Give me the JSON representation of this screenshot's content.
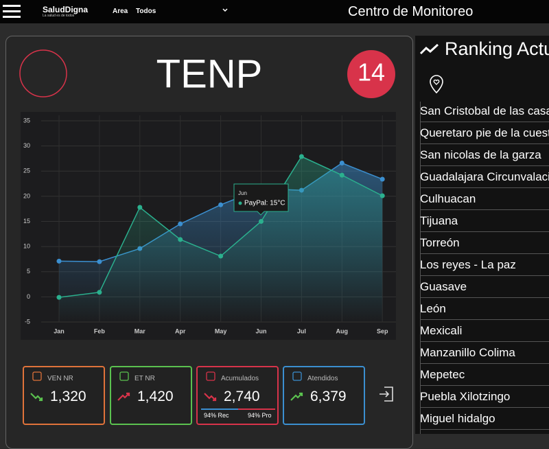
{
  "header": {
    "logo": "SaludDigna",
    "logo_sub": "La salud es de todos",
    "area_label": "Area",
    "area_value": "Todos",
    "title": "Centro de Monitoreo"
  },
  "panel": {
    "title": "TENP",
    "badge": "14"
  },
  "chart_data": {
    "type": "line",
    "categories": [
      "Jan",
      "Feb",
      "Mar",
      "Apr",
      "May",
      "Jun",
      "Jul",
      "Aug",
      "Sep"
    ],
    "series": [
      {
        "color": "#3b8fd0",
        "values": [
          7.1,
          7,
          9.6,
          14.5,
          18.3,
          21.5,
          21.2,
          26.6,
          23.4
        ]
      },
      {
        "name": "PayPal",
        "color": "#2bb08e",
        "values": [
          -0.1,
          0.9,
          17.8,
          11.4,
          8.1,
          15,
          27.9,
          24.2,
          20.1
        ]
      }
    ],
    "ylim": [
      -5,
      35
    ],
    "yticks": [
      -5,
      0,
      5,
      10,
      15,
      20,
      25,
      30,
      35
    ],
    "grid": true,
    "tooltip": {
      "title": "Jun",
      "text": "PayPal: 15°C"
    }
  },
  "kpis": [
    {
      "label": "VEN NR",
      "value": "1,320",
      "color": "#e0733a",
      "trend": "down-good"
    },
    {
      "label": "ET NR",
      "value": "1,420",
      "color": "#5bc24f",
      "trend": "up-bad"
    },
    {
      "label": "Acumulados",
      "value": "2,740",
      "color": "#d8334a",
      "trend": "down-bad",
      "bars": [
        "94% Rec",
        "94% Pro"
      ]
    },
    {
      "label": "Atendidos",
      "value": "6,379",
      "color": "#3b8fd0",
      "trend": "up-good"
    }
  ],
  "ranking": {
    "title": "Ranking Actu",
    "items": [
      "San Cristobal de las casa",
      "Queretaro pie de la cuest",
      "San nicolas de la garza",
      "Guadalajara Circunvalaci",
      "Culhuacan",
      "Tijuana",
      "Torreón",
      "Los reyes - La paz",
      "Guasave",
      "León",
      "Mexicali",
      "Manzanillo Colima",
      "Mepetec",
      "Puebla Xilotzingo",
      "Miguel hidalgo"
    ]
  }
}
